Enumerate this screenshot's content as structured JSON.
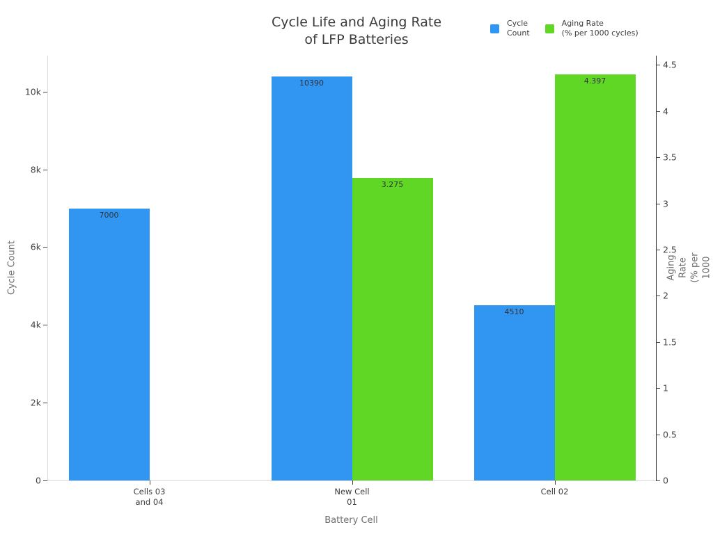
{
  "chart_data": {
    "type": "bar",
    "title": "Cycle Life and Aging Rate\nof LFP Batteries",
    "legend_position": "top-right",
    "grid": false,
    "x_axis": {
      "title": "Battery Cell",
      "categories": [
        "Cells 03\nand 04",
        "New Cell\n01",
        "Cell 02"
      ]
    },
    "y_axis_left": {
      "title": "Cycle Count",
      "min": 0,
      "max": 10925,
      "tick_values": [
        0,
        2000,
        4000,
        6000,
        8000,
        10000
      ],
      "tick_labels": [
        "0",
        "2k",
        "4k",
        "6k",
        "8k",
        "10k"
      ]
    },
    "y_axis_right": {
      "title": "Aging Rate\n(% per 1000 cycles)",
      "min": 0,
      "max": 4.6,
      "tick_values": [
        0,
        0.5,
        1,
        1.5,
        2,
        2.5,
        3,
        3.5,
        4,
        4.5
      ],
      "tick_labels": [
        "0",
        "0.5",
        "1",
        "1.5",
        "2",
        "2.5",
        "3",
        "3.5",
        "4",
        "4.5"
      ]
    },
    "series": [
      {
        "name": "Cycle Count",
        "legend_label": "Cycle\nCount",
        "color": "#3196F2",
        "axis": "left",
        "values": [
          7000,
          10390,
          4510
        ],
        "value_labels": [
          "7000",
          "10390",
          "4510"
        ]
      },
      {
        "name": "Aging Rate (% per 1000 cycles)",
        "legend_label": "Aging Rate\n(% per 1000 cycles)",
        "color": "#60D724",
        "axis": "right",
        "values": [
          null,
          3.275,
          4.397
        ],
        "value_labels": [
          null,
          "3.275",
          "4.397"
        ]
      }
    ]
  }
}
